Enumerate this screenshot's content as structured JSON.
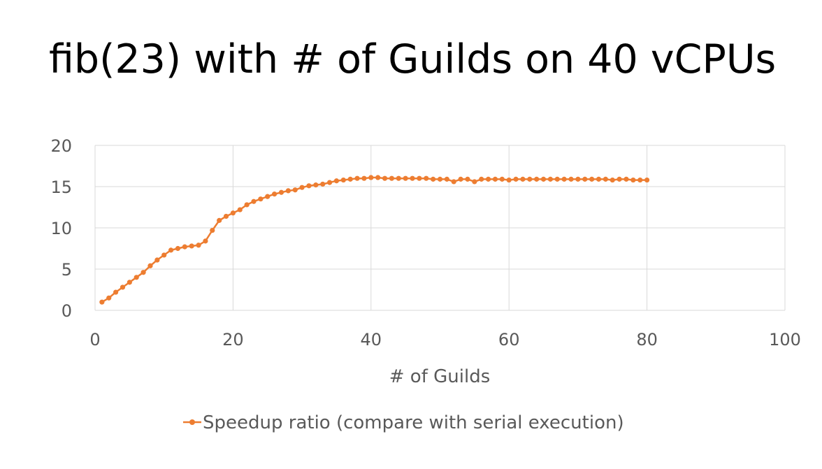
{
  "slide": {
    "title": "fib(23) with # of Guilds on 40 vCPUs"
  },
  "colors": {
    "series": "#ED7D31",
    "grid": "#D9D9D9",
    "text": "#595959"
  },
  "chart_data": {
    "type": "line",
    "title": "",
    "xlabel": "# of Guilds",
    "ylabel": "",
    "xlim": [
      0,
      100
    ],
    "ylim": [
      0,
      20
    ],
    "xticks": [
      0,
      20,
      40,
      60,
      80,
      100
    ],
    "yticks": [
      0,
      5,
      10,
      15,
      20
    ],
    "grid": true,
    "legend_position": "bottom",
    "series": [
      {
        "name": "Speedup ratio (compare with serial execution)",
        "marker": "circle",
        "x": [
          1,
          2,
          3,
          4,
          5,
          6,
          7,
          8,
          9,
          10,
          11,
          12,
          13,
          14,
          15,
          16,
          17,
          18,
          19,
          20,
          21,
          22,
          23,
          24,
          25,
          26,
          27,
          28,
          29,
          30,
          31,
          32,
          33,
          34,
          35,
          36,
          37,
          38,
          39,
          40,
          41,
          42,
          43,
          44,
          45,
          46,
          47,
          48,
          49,
          50,
          51,
          52,
          53,
          54,
          55,
          56,
          57,
          58,
          59,
          60,
          61,
          62,
          63,
          64,
          65,
          66,
          67,
          68,
          69,
          70,
          71,
          72,
          73,
          74,
          75,
          76,
          77,
          78,
          79,
          80
        ],
        "y": [
          1.0,
          1.5,
          2.2,
          2.8,
          3.4,
          4.0,
          4.6,
          5.4,
          6.1,
          6.7,
          7.3,
          7.5,
          7.7,
          7.8,
          7.9,
          8.4,
          9.7,
          10.9,
          11.4,
          11.8,
          12.2,
          12.8,
          13.2,
          13.5,
          13.8,
          14.1,
          14.3,
          14.5,
          14.6,
          14.9,
          15.1,
          15.2,
          15.3,
          15.5,
          15.7,
          15.8,
          15.9,
          16.0,
          16.0,
          16.1,
          16.1,
          16.0,
          16.0,
          16.0,
          16.0,
          16.0,
          16.0,
          16.0,
          15.9,
          15.9,
          15.9,
          15.6,
          15.9,
          15.9,
          15.6,
          15.9,
          15.9,
          15.9,
          15.9,
          15.8,
          15.9,
          15.9,
          15.9,
          15.9,
          15.9,
          15.9,
          15.9,
          15.9,
          15.9,
          15.9,
          15.9,
          15.9,
          15.9,
          15.9,
          15.8,
          15.9,
          15.9,
          15.8,
          15.8,
          15.8
        ]
      }
    ]
  }
}
